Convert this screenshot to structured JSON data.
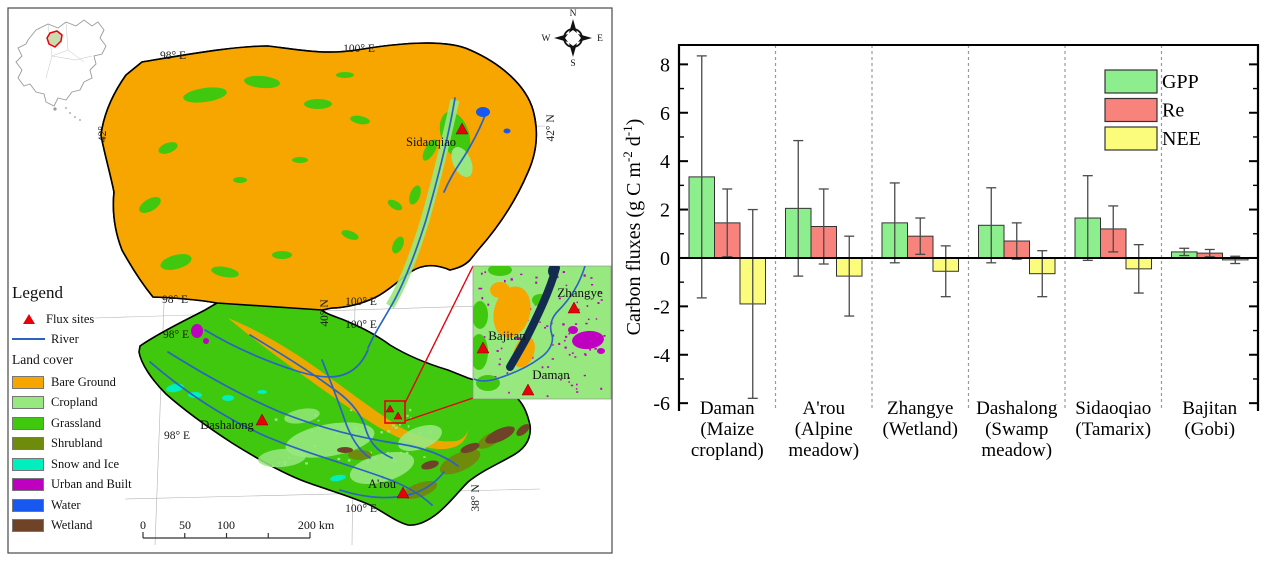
{
  "map": {
    "compass": {
      "n": "N",
      "e": "E",
      "s": "S",
      "w": "W"
    },
    "grid_labels": {
      "top_98e": "98° E",
      "top_100e": "100° E",
      "west_42": "42°",
      "east_42n": "42° N",
      "notch_100e_a": "100° E",
      "notch_100e_b": "100° E",
      "notch_40n": "40° N",
      "west_98e_a": "98° E",
      "west_98e_b": "98° E",
      "west_98e_c": "98° E",
      "south_100e": "100° E",
      "south_38n": "38° N"
    },
    "sites": {
      "sidaoqiao": "Sidaoqiao",
      "dashalong": "Dashalong",
      "arou": "A'rou"
    },
    "inset_sites": {
      "zhangye": "Zhangye",
      "bajitan": "Bajitan",
      "daman": "Daman"
    },
    "legend": {
      "title": "Legend",
      "flux_sites": "Flux sites",
      "river": "River",
      "land_cover": "Land cover",
      "classes": [
        {
          "label": "Bare Ground",
          "color": "#F7A600"
        },
        {
          "label": "Cropland",
          "color": "#98E880"
        },
        {
          "label": "Grassland",
          "color": "#3FC80D"
        },
        {
          "label": "Shrubland",
          "color": "#6F8B0B"
        },
        {
          "label": "Snow and Ice",
          "color": "#00EFBF"
        },
        {
          "label": "Urban and Built",
          "color": "#C000C0"
        },
        {
          "label": "Water",
          "color": "#1758F0"
        },
        {
          "label": "Wetland",
          "color": "#6F4328"
        }
      ]
    },
    "scalebar": {
      "t0": "0",
      "t50": "50",
      "t100": "100",
      "t200": "200 km"
    },
    "colors": {
      "flux_site": "#E8000B",
      "river": "#2A63C4",
      "inset_lake": "#122B4E",
      "highlight_red": "#E8000B"
    }
  },
  "chart_data": {
    "type": "bar",
    "title": "",
    "xlabel": "",
    "ylabel": "Carbon fluxes (g C m-2 d-1)",
    "ylabel_parts": [
      {
        "t": "Carbon fluxes (g C m"
      },
      {
        "t": "-2",
        "sup": true
      },
      {
        "t": " d",
        "sup": false
      },
      {
        "t": "-1",
        "sup": true
      },
      {
        "t": ")",
        "sup": false
      }
    ],
    "ylim": [
      -6.2,
      8.8
    ],
    "yticks": [
      -6,
      -4,
      -2,
      0,
      2,
      4,
      6,
      8
    ],
    "grid": "dashed-vertical-group-separators",
    "legend_position": "top-right",
    "categories": [
      {
        "name": "Daman (Maize cropland)",
        "lines": [
          "Daman",
          "(Maize",
          "cropland)"
        ]
      },
      {
        "name": "A'rou (Alpine meadow)",
        "lines": [
          "A'rou",
          "(Alpine",
          "meadow)"
        ]
      },
      {
        "name": "Zhangye (Wetland)",
        "lines": [
          "Zhangye",
          "(Wetland)"
        ]
      },
      {
        "name": "Dashalong (Swamp meadow)",
        "lines": [
          "Dashalong",
          "(Swamp",
          "meadow)"
        ]
      },
      {
        "name": "Sidaoqiao (Tamarix)",
        "lines": [
          "Sidaoqiao",
          "(Tamarix)"
        ]
      },
      {
        "name": "Bajitan (Gobi)",
        "lines": [
          "Bajitan",
          "(Gobi)"
        ]
      }
    ],
    "series": [
      {
        "name": "GPP",
        "color": "#8DEE8D",
        "values": [
          3.35,
          2.05,
          1.45,
          1.35,
          1.65,
          0.25
        ],
        "errors": [
          5.0,
          2.8,
          1.65,
          1.55,
          1.75,
          0.15
        ]
      },
      {
        "name": "Re",
        "color": "#F8837C",
        "values": [
          1.45,
          1.3,
          0.9,
          0.7,
          1.2,
          0.2
        ],
        "errors": [
          1.4,
          1.55,
          0.75,
          0.75,
          0.95,
          0.15
        ]
      },
      {
        "name": "NEE",
        "color": "#FCFC7C",
        "values": [
          -1.9,
          -0.75,
          -0.55,
          -0.65,
          -0.45,
          -0.08
        ],
        "errors": [
          3.9,
          1.65,
          1.05,
          0.95,
          1.0,
          0.15
        ]
      }
    ]
  }
}
